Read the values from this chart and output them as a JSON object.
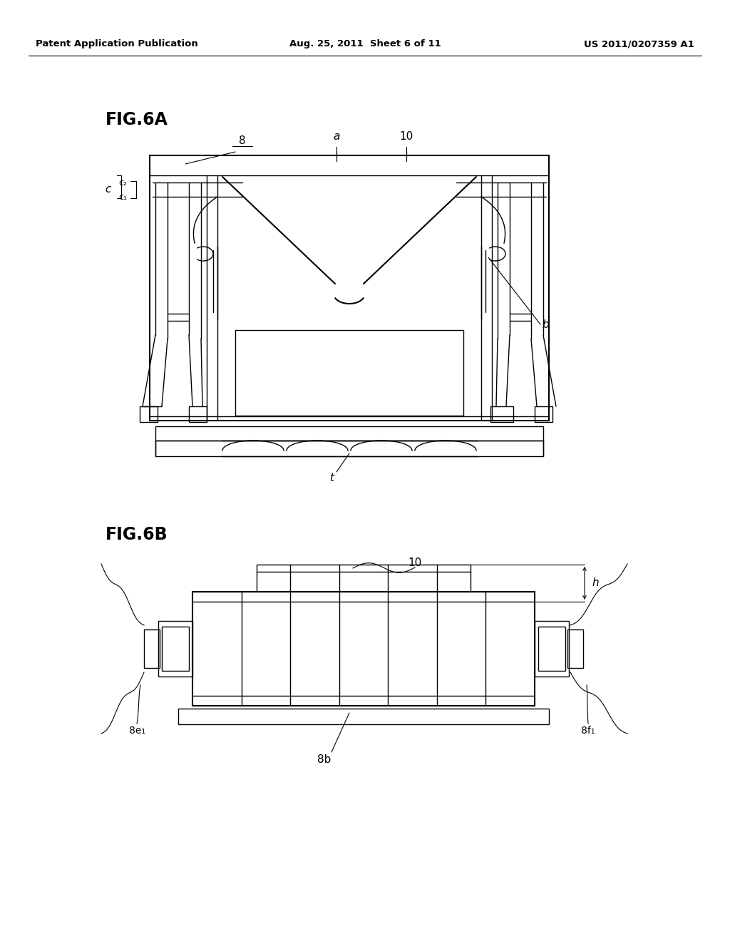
{
  "bg_color": "#ffffff",
  "line_color": "#000000",
  "header_left": "Patent Application Publication",
  "header_mid": "Aug. 25, 2011  Sheet 6 of 11",
  "header_right": "US 2011/0207359 A1",
  "fig6a_label": "FIG.6A",
  "fig6b_label": "FIG.6B"
}
